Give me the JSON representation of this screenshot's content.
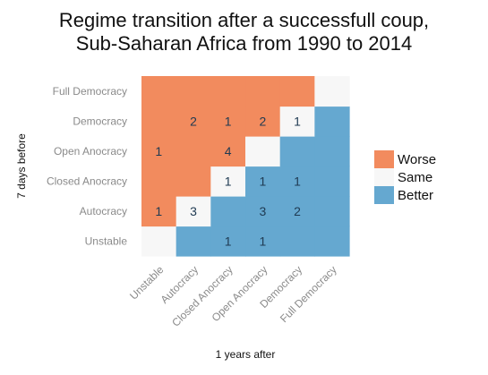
{
  "chart_data": {
    "type": "heatmap",
    "title": [
      "Regime transition after a successfull coup,",
      "Sub-Saharan Africa from 1990 to 2014"
    ],
    "xlabel": "1 years after",
    "ylabel": "7 days before",
    "categories": [
      "Unstable",
      "Autocracy",
      "Closed Anocracy",
      "Open Anocracy",
      "Democracy",
      "Full Democracy"
    ],
    "legend": {
      "position": "right",
      "entries": [
        {
          "label": "Worse",
          "color": "#f28b5e"
        },
        {
          "label": "Same",
          "color": "#f7f7f7"
        },
        {
          "label": "Better",
          "color": "#65a8d0"
        }
      ]
    },
    "counts": [
      {
        "before": "Democracy",
        "after": "Autocracy",
        "value": 2
      },
      {
        "before": "Democracy",
        "after": "Closed Anocracy",
        "value": 1
      },
      {
        "before": "Democracy",
        "after": "Open Anocracy",
        "value": 2
      },
      {
        "before": "Democracy",
        "after": "Democracy",
        "value": 1
      },
      {
        "before": "Open Anocracy",
        "after": "Unstable",
        "value": 1
      },
      {
        "before": "Open Anocracy",
        "after": "Closed Anocracy",
        "value": 4
      },
      {
        "before": "Closed Anocracy",
        "after": "Closed Anocracy",
        "value": 1
      },
      {
        "before": "Closed Anocracy",
        "after": "Open Anocracy",
        "value": 1
      },
      {
        "before": "Closed Anocracy",
        "after": "Democracy",
        "value": 1
      },
      {
        "before": "Autocracy",
        "after": "Unstable",
        "value": 1
      },
      {
        "before": "Autocracy",
        "after": "Autocracy",
        "value": 3
      },
      {
        "before": "Autocracy",
        "after": "Open Anocracy",
        "value": 3
      },
      {
        "before": "Autocracy",
        "after": "Democracy",
        "value": 2
      },
      {
        "before": "Unstable",
        "after": "Closed Anocracy",
        "value": 1
      },
      {
        "before": "Unstable",
        "after": "Open Anocracy",
        "value": 1
      }
    ]
  }
}
